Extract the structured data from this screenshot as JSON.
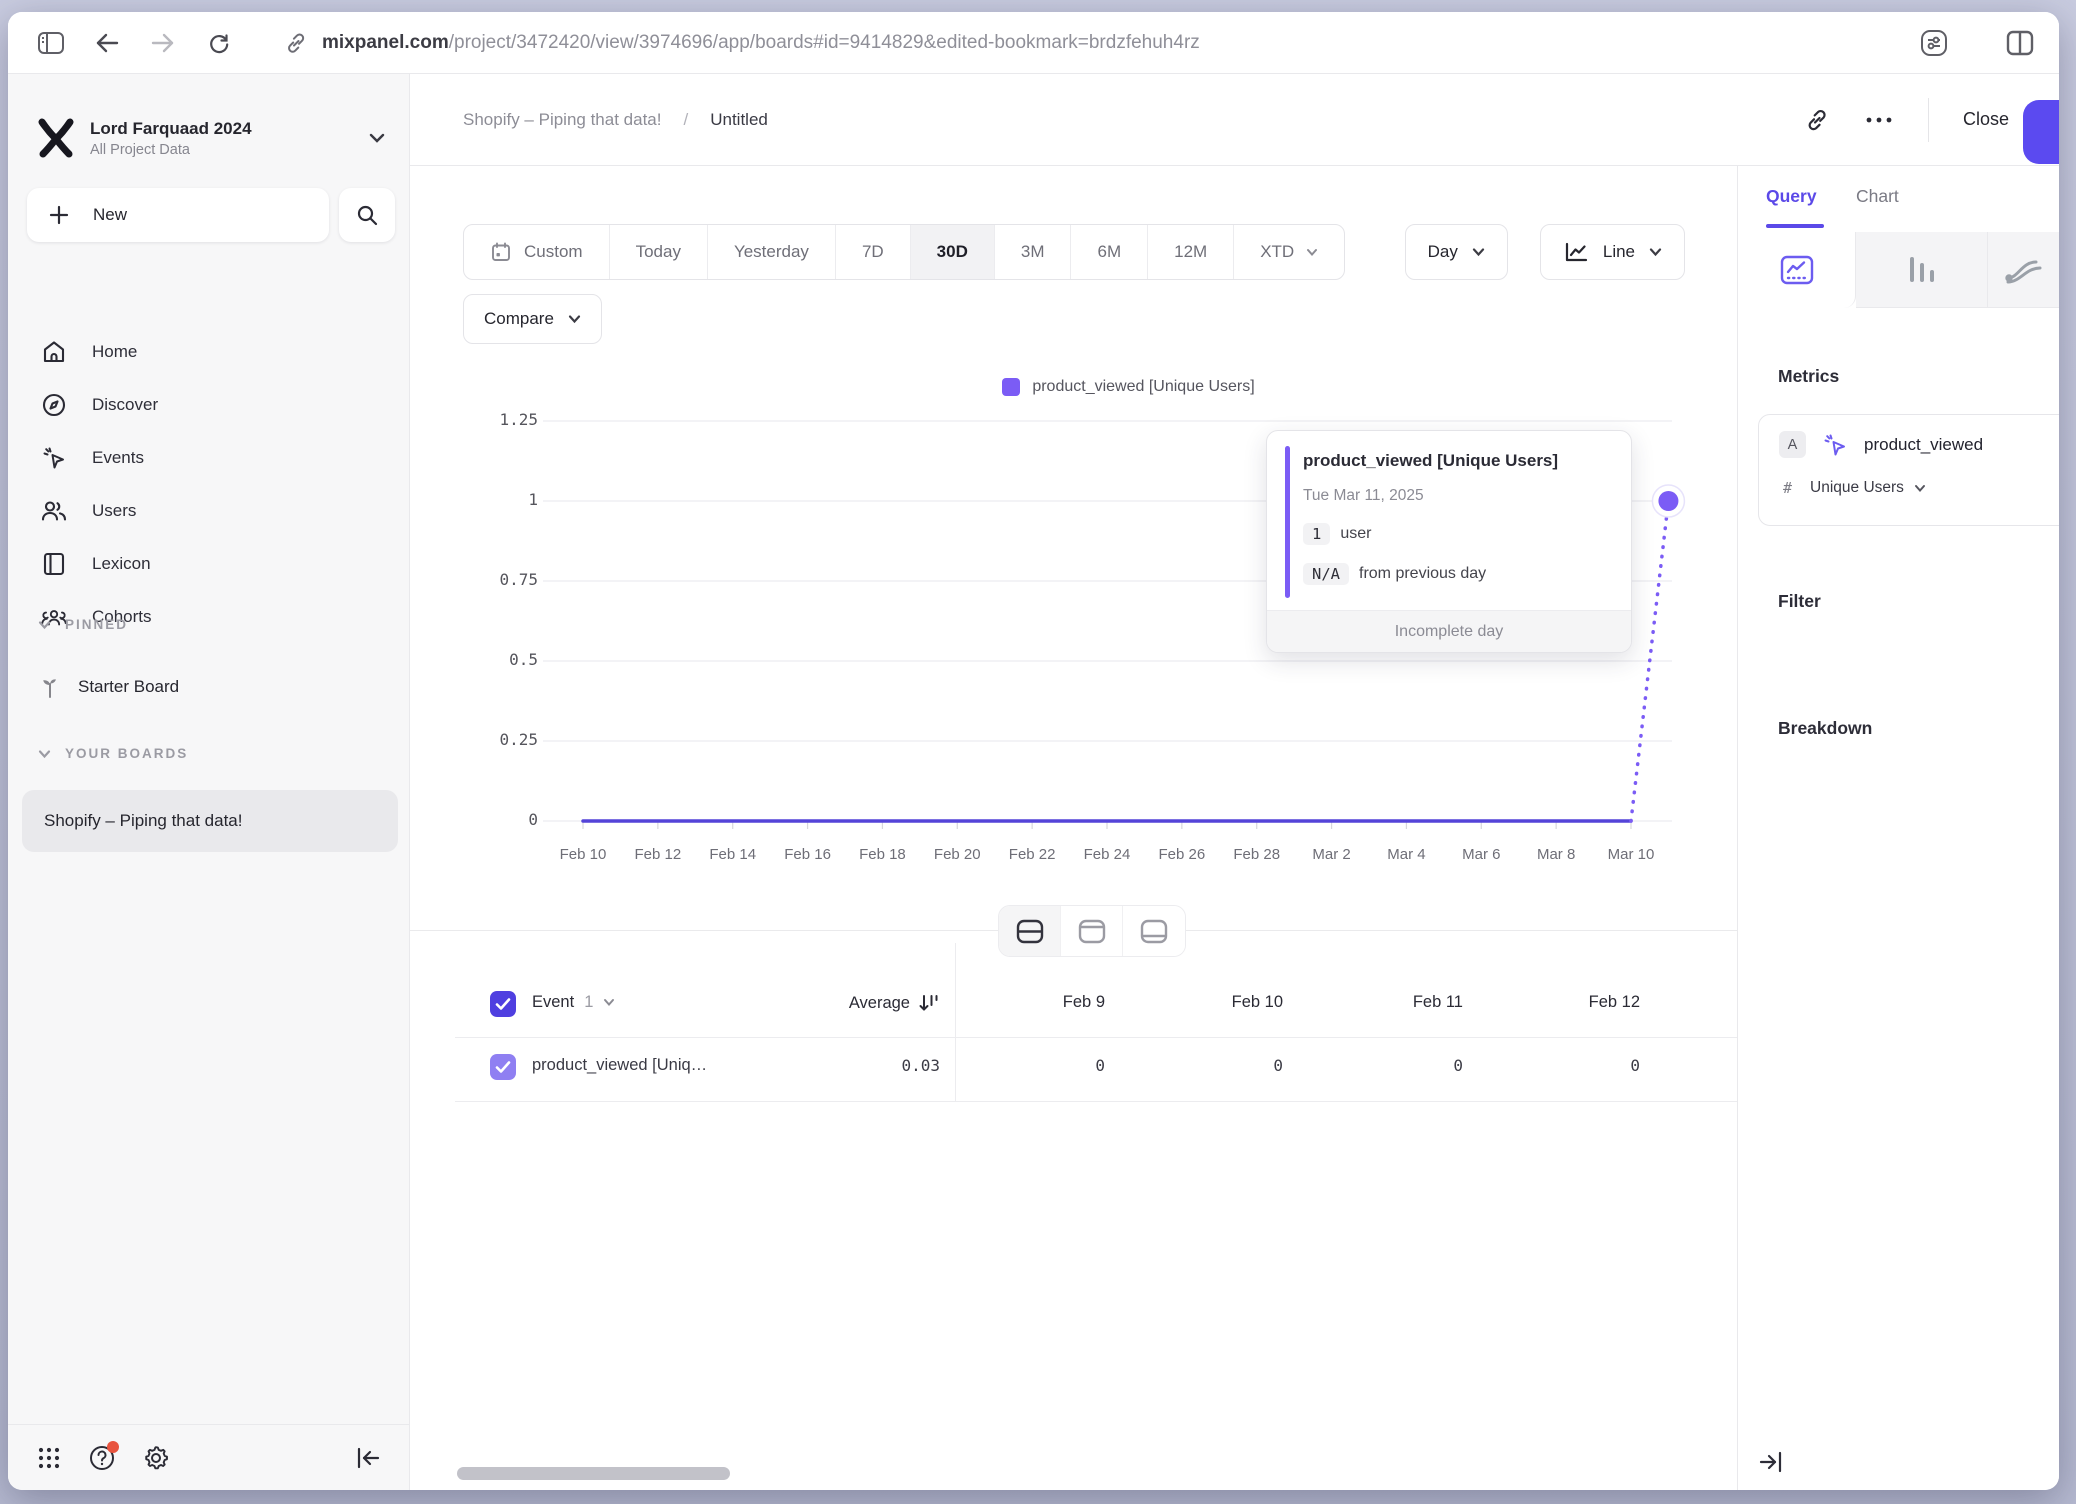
{
  "browser": {
    "url_host": "mixpanel.com",
    "url_path": "/project/3472420/view/3974696/app/boards#id=9414829&edited-bookmark=brdzfehuh4rz"
  },
  "colors": {
    "accent": "#5b49e8",
    "line": "#5444d8",
    "legend": "#7b5cf5",
    "point": "#7b5cf5",
    "grid": "#ececf0",
    "checkbox_header": "#4f3fe0",
    "checkbox_row": "#8f7ff2",
    "notification": "#e8543f"
  },
  "sidebar": {
    "project_name": "Lord Farquaad 2024",
    "project_subtitle": "All Project Data",
    "new_label": "New",
    "nav": [
      {
        "label": "Home"
      },
      {
        "label": "Discover"
      },
      {
        "label": "Events"
      },
      {
        "label": "Users"
      },
      {
        "label": "Lexicon"
      },
      {
        "label": "Cohorts"
      }
    ],
    "pinned_header": "PINNED",
    "pinned_item": "Starter Board",
    "boards_header": "YOUR BOARDS",
    "board_selected": "Shopify – Piping that data!"
  },
  "header": {
    "breadcrumb_board": "Shopify – Piping that data!",
    "breadcrumb_sep": "/",
    "breadcrumb_page": "Untitled",
    "close_label": "Close"
  },
  "controls": {
    "ranges": [
      "Custom",
      "Today",
      "Yesterday",
      "7D",
      "30D",
      "3M",
      "6M",
      "12M",
      "XTD"
    ],
    "selected_range": "30D",
    "granularity": "Day",
    "chart_type": "Line",
    "compare_label": "Compare"
  },
  "legend": {
    "label": "product_viewed [Unique Users]"
  },
  "tooltip": {
    "title": "product_viewed [Unique Users]",
    "date": "Tue Mar 11, 2025",
    "value": "1",
    "value_unit": "user",
    "delta": "N/A",
    "delta_text": "from previous day",
    "footer": "Incomplete day"
  },
  "chart_data": {
    "type": "line",
    "title": "",
    "xlabel": "",
    "ylabel": "",
    "ylim": [
      0,
      1.25
    ],
    "grid": true,
    "legend_position": "top",
    "incomplete_last": true,
    "series": [
      {
        "name": "product_viewed [Unique Users]",
        "x": [
          "Feb 10",
          "Feb 11",
          "Feb 12",
          "Feb 13",
          "Feb 14",
          "Feb 15",
          "Feb 16",
          "Feb 17",
          "Feb 18",
          "Feb 19",
          "Feb 20",
          "Feb 21",
          "Feb 22",
          "Feb 23",
          "Feb 24",
          "Feb 25",
          "Feb 26",
          "Feb 27",
          "Feb 28",
          "Mar 1",
          "Mar 2",
          "Mar 3",
          "Mar 4",
          "Mar 5",
          "Mar 6",
          "Mar 7",
          "Mar 8",
          "Mar 9",
          "Mar 10",
          "Mar 11"
        ],
        "values": [
          0,
          0,
          0,
          0,
          0,
          0,
          0,
          0,
          0,
          0,
          0,
          0,
          0,
          0,
          0,
          0,
          0,
          0,
          0,
          0,
          0,
          0,
          0,
          0,
          0,
          0,
          0,
          0,
          0,
          1
        ]
      }
    ],
    "tick_labels": [
      "Feb 10",
      "Feb 12",
      "Feb 14",
      "Feb 16",
      "Feb 18",
      "Feb 20",
      "Feb 22",
      "Feb 24",
      "Feb 26",
      "Feb 28",
      "Mar 2",
      "Mar 4",
      "Mar 6",
      "Mar 8",
      "Mar 10"
    ],
    "yticks": [
      {
        "value": 0,
        "label": "0"
      },
      {
        "value": 0.25,
        "label": "0.25"
      },
      {
        "value": 0.5,
        "label": "0.5"
      },
      {
        "value": 0.75,
        "label": "0.75"
      },
      {
        "value": 1,
        "label": "1"
      },
      {
        "value": 1.25,
        "label": "1.25"
      }
    ]
  },
  "table": {
    "event_label": "Event",
    "event_count": "1",
    "average_label": "Average",
    "date_columns": [
      "Feb 9",
      "Feb 10",
      "Feb 11",
      "Feb 12"
    ],
    "row": {
      "name": "product_viewed [Uniq…",
      "average": "0.03",
      "values": [
        "0",
        "0",
        "0",
        "0"
      ]
    }
  },
  "query_panel": {
    "tab_query": "Query",
    "tab_chart": "Chart",
    "metrics_label": "Metrics",
    "metric_letter": "A",
    "metric_event": "product_viewed",
    "metric_operator": "#",
    "metric_measure": "Unique Users",
    "filter_label": "Filter",
    "breakdown_label": "Breakdown"
  }
}
